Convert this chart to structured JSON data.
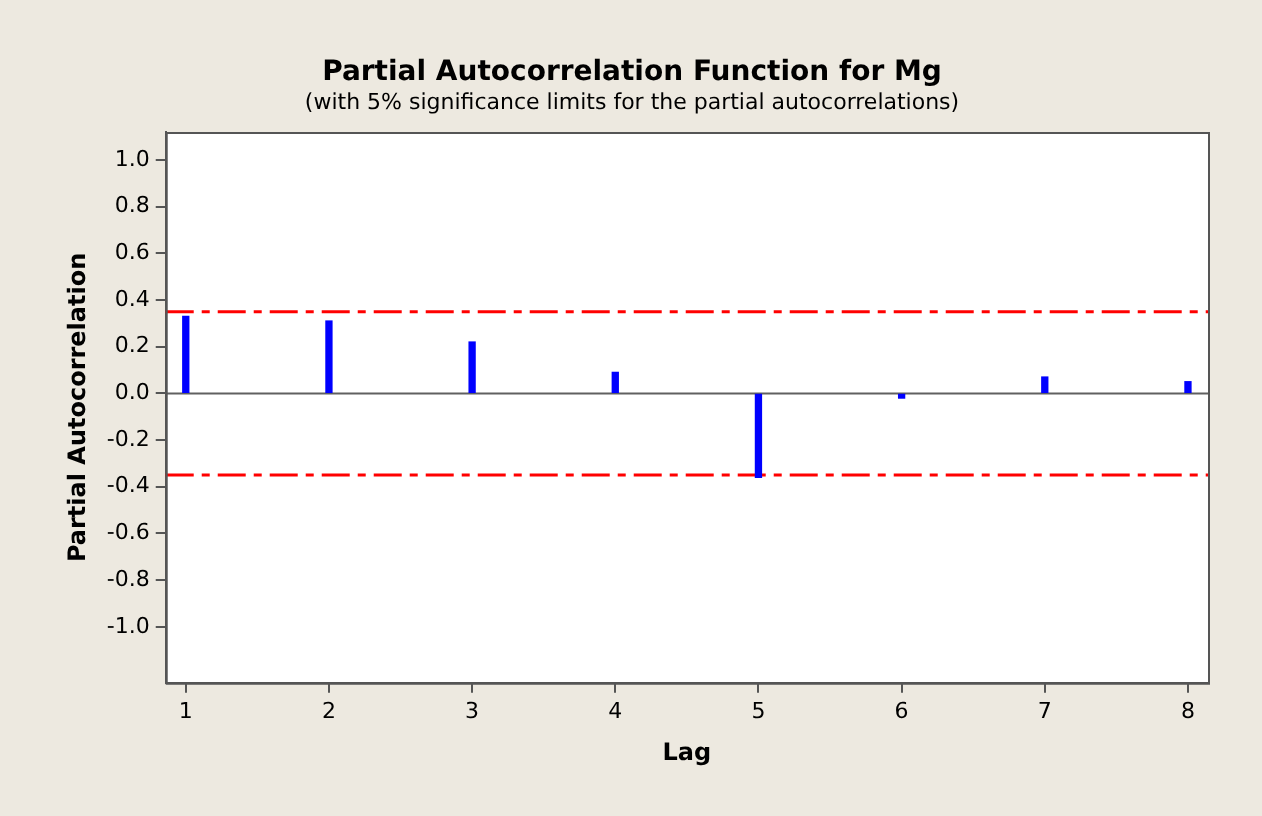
{
  "chart_data": {
    "type": "bar",
    "title": "Partial Autocorrelation Function for Mg",
    "subtitle": "(with 5% significance limits for the partial autocorrelations)",
    "xlabel": "Lag",
    "ylabel": "Partial Autocorrelation",
    "x": [
      1,
      2,
      3,
      4,
      5,
      6,
      7,
      8
    ],
    "values": [
      0.33,
      0.31,
      0.22,
      0.09,
      -0.36,
      -0.02,
      0.07,
      0.05
    ],
    "color": "#0000ff",
    "xlim": [
      0.86,
      8.14
    ],
    "xticks": [
      1,
      2,
      3,
      4,
      5,
      6,
      7,
      8
    ],
    "ylim": [
      -1.24,
      1.12
    ],
    "yticks": [
      {
        "value": -1,
        "label": "-1.0"
      },
      -0.8,
      -0.6,
      -0.4,
      -0.2,
      {
        "value": 0,
        "label": "0.0"
      },
      0.2,
      0.4,
      0.6,
      0.8,
      {
        "value": 1,
        "label": "1.0"
      }
    ],
    "ref_lines": [
      {
        "axis": "y",
        "value": 0.35,
        "color": "#ff0000",
        "line_style": "dashed"
      },
      {
        "axis": "y",
        "value": -0.35,
        "color": "#ff0000",
        "line_style": "dashed"
      },
      {
        "axis": "y",
        "value": 0,
        "color": "#606060",
        "line_style": "solid"
      }
    ],
    "grid": false,
    "legend": false
  }
}
